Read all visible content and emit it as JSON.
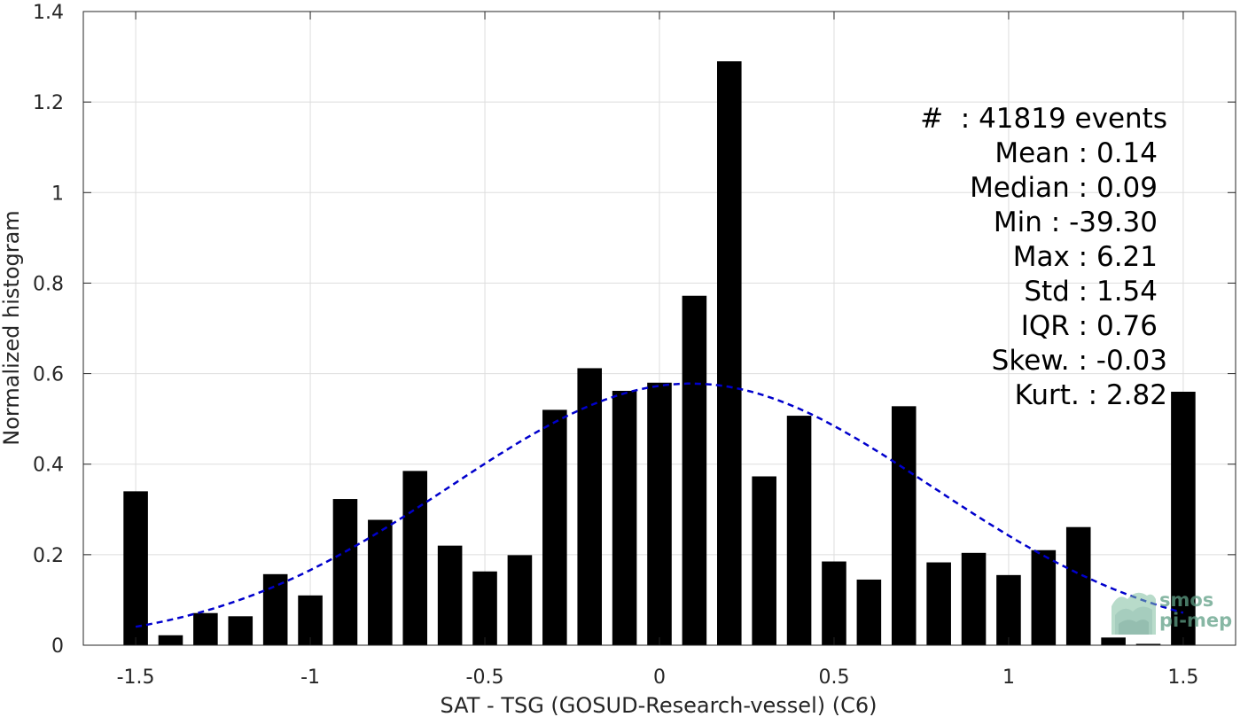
{
  "chart_data": {
    "type": "bar",
    "xlabel": "SAT - TSG (GOSUD-Research-vessel) (C6)",
    "ylabel": "Normalized histogram",
    "xlim": [
      -1.65,
      1.65
    ],
    "ylim": [
      0,
      1.4
    ],
    "grid": true,
    "bar_width": 0.07,
    "x_ticks": [
      -1.5,
      -1,
      -0.5,
      0,
      0.5,
      1,
      1.5
    ],
    "x_tick_labels": [
      "-1.5",
      "-1",
      "-0.5",
      "0",
      "0.5",
      "1",
      "1.5"
    ],
    "y_ticks": [
      0,
      0.2,
      0.4,
      0.6,
      0.8,
      1,
      1.2,
      1.4
    ],
    "y_tick_labels": [
      "0",
      "0.2",
      "0.4",
      "0.6",
      "0.8",
      "1",
      "1.2",
      "1.4"
    ],
    "x": [
      -1.5,
      -1.4,
      -1.3,
      -1.2,
      -1.1,
      -1.0,
      -0.9,
      -0.8,
      -0.7,
      -0.6,
      -0.5,
      -0.4,
      -0.3,
      -0.2,
      -0.1,
      0.0,
      0.1,
      0.2,
      0.3,
      0.4,
      0.5,
      0.6,
      0.7,
      0.8,
      0.9,
      1.0,
      1.1,
      1.2,
      1.3,
      1.4,
      1.5
    ],
    "values": [
      0.34,
      0.022,
      0.071,
      0.064,
      0.157,
      0.11,
      0.323,
      0.277,
      0.385,
      0.22,
      0.163,
      0.199,
      0.52,
      0.612,
      0.562,
      0.58,
      0.772,
      1.29,
      0.373,
      0.507,
      0.185,
      0.145,
      0.528,
      0.183,
      0.204,
      0.155,
      0.21,
      0.261,
      0.017,
      0.003,
      0.56
    ],
    "bar_color": "#000000",
    "fit_curve": {
      "style": "dashed",
      "color": "#0000cc",
      "mean": 0.09,
      "std": 0.69,
      "peak": 0.578,
      "x_range": [
        -1.5,
        1.5
      ]
    },
    "annotations": [
      "#  : 41819 events",
      "Mean : 0.14",
      "Median : 0.09",
      "Min : -39.30",
      "Max : 6.21",
      "Std : 1.54",
      "IQR : 0.76",
      "Skew. : -0.03",
      "Kurt. : 2.82"
    ]
  },
  "logo": {
    "line1": "smos",
    "line2": "pi-mep",
    "color": "#5f9f86"
  }
}
